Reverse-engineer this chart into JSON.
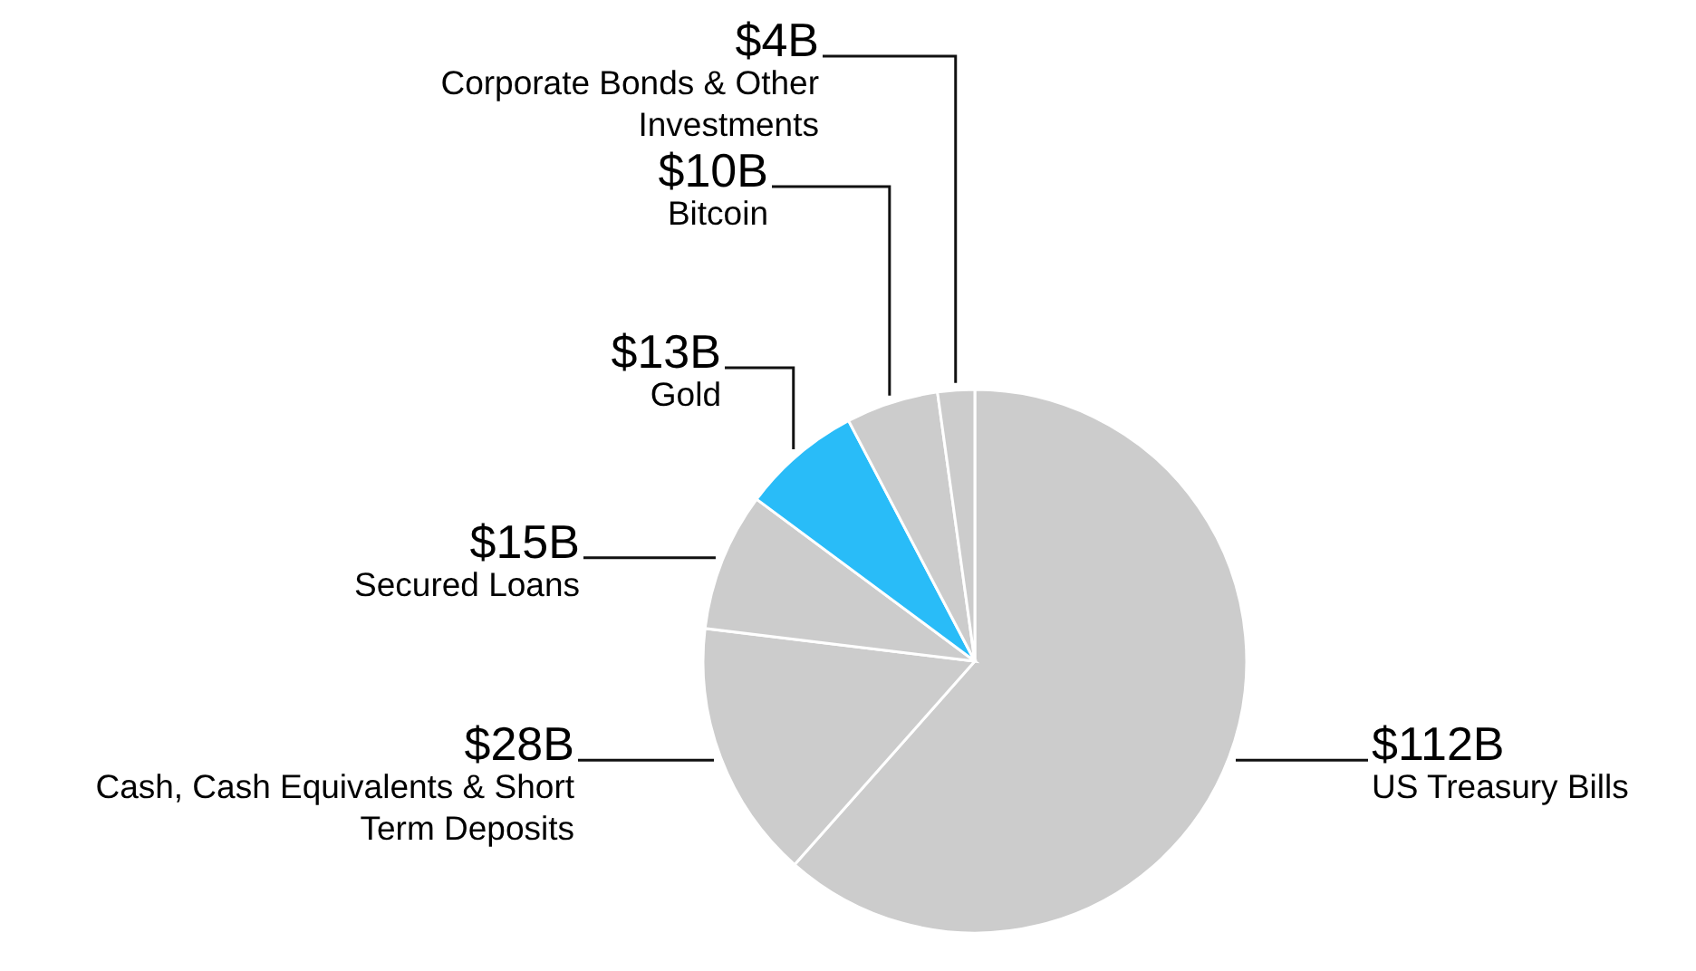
{
  "chart_data": {
    "type": "pie",
    "categories": [
      "US Treasury Bills",
      "Cash, Cash Equivalents & Short Term Deposits",
      "Secured Loans",
      "Gold",
      "Bitcoin",
      "Corporate Bonds & Other Investments"
    ],
    "values": [
      112,
      28,
      15,
      13,
      10,
      4
    ],
    "colors": [
      "#cccccc",
      "#cccccc",
      "#cccccc",
      "#29bcf8",
      "#cccccc",
      "#cccccc"
    ],
    "value_labels": [
      "$112B",
      "$28B",
      "$15B",
      "$13B",
      "$10B",
      "$4B"
    ]
  }
}
